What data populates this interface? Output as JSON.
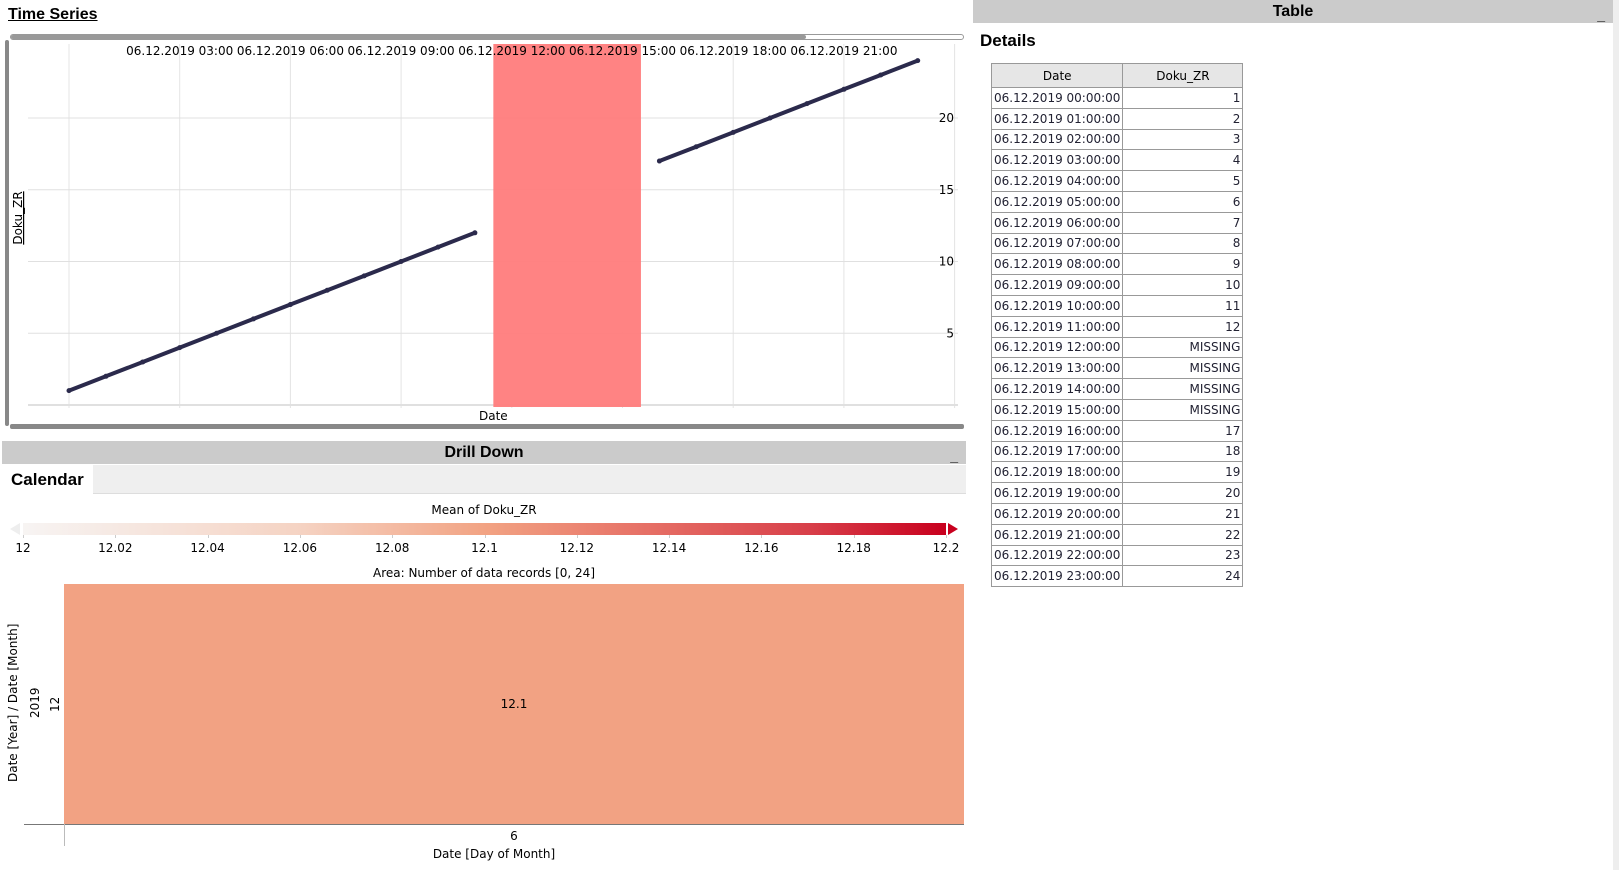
{
  "time_series": {
    "title": "Time Series",
    "chart_data": {
      "type": "line",
      "xlabel": "Date",
      "ylabel": "Doku_ZR",
      "x_tick_labels": [
        "06.12.2019 03:00",
        "06.12.2019 06:00",
        "06.12.2019 09:00",
        "06.12.2019 12:00",
        "06.12.2019 15:00",
        "06.12.2019 18:00",
        "06.12.2019 21:00"
      ],
      "y_ticks": [
        5,
        10,
        15,
        20
      ],
      "ylim": [
        0,
        24
      ],
      "grid": true,
      "series_color": "#2b2a4c",
      "highlight_color": "#ff7f7f",
      "highlight_range": [
        "06.12.2019 11:30",
        "06.12.2019 15:30"
      ],
      "x": [
        "00:00",
        "01:00",
        "02:00",
        "03:00",
        "04:00",
        "05:00",
        "06:00",
        "07:00",
        "08:00",
        "09:00",
        "10:00",
        "11:00",
        "12:00",
        "13:00",
        "14:00",
        "15:00",
        "16:00",
        "17:00",
        "18:00",
        "19:00",
        "20:00",
        "21:00",
        "22:00",
        "23:00"
      ],
      "values": [
        1,
        2,
        3,
        4,
        5,
        6,
        7,
        8,
        9,
        10,
        11,
        12,
        null,
        null,
        null,
        null,
        17,
        18,
        19,
        20,
        21,
        22,
        23,
        24
      ]
    }
  },
  "drill_down": {
    "title": "Drill Down",
    "minimize": "_",
    "tab": "Calendar",
    "chart_data": {
      "type": "heatmap",
      "legend_title": "Mean of Doku_ZR",
      "legend_ticks": [
        "12",
        "12.02",
        "12.04",
        "12.06",
        "12.08",
        "12.1",
        "12.12",
        "12.14",
        "12.16",
        "12.18",
        "12.2"
      ],
      "legend_colors": [
        "#f7f4f3",
        "#f2a383",
        "#c8001e"
      ],
      "area_label": "Area:  Number of data records  [0, 24]",
      "xlabel": "Date [Day of Month]",
      "ylabel": "Date [Year] / Date [Month]",
      "x_categories": [
        "6"
      ],
      "y_year": "2019",
      "y_month": "12",
      "cells": [
        {
          "day": "6",
          "year": "2019",
          "month": "12",
          "value": "12.1",
          "color": "#f2a283"
        }
      ]
    }
  },
  "table": {
    "title": "Table",
    "minimize": "_",
    "section": "Details",
    "columns": [
      "Date",
      "Doku_ZR"
    ],
    "rows": [
      [
        "06.12.2019 00:00:00",
        "1"
      ],
      [
        "06.12.2019 01:00:00",
        "2"
      ],
      [
        "06.12.2019 02:00:00",
        "3"
      ],
      [
        "06.12.2019 03:00:00",
        "4"
      ],
      [
        "06.12.2019 04:00:00",
        "5"
      ],
      [
        "06.12.2019 05:00:00",
        "6"
      ],
      [
        "06.12.2019 06:00:00",
        "7"
      ],
      [
        "06.12.2019 07:00:00",
        "8"
      ],
      [
        "06.12.2019 08:00:00",
        "9"
      ],
      [
        "06.12.2019 09:00:00",
        "10"
      ],
      [
        "06.12.2019 10:00:00",
        "11"
      ],
      [
        "06.12.2019 11:00:00",
        "12"
      ],
      [
        "06.12.2019 12:00:00",
        "MISSING"
      ],
      [
        "06.12.2019 13:00:00",
        "MISSING"
      ],
      [
        "06.12.2019 14:00:00",
        "MISSING"
      ],
      [
        "06.12.2019 15:00:00",
        "MISSING"
      ],
      [
        "06.12.2019 16:00:00",
        "17"
      ],
      [
        "06.12.2019 17:00:00",
        "18"
      ],
      [
        "06.12.2019 18:00:00",
        "19"
      ],
      [
        "06.12.2019 19:00:00",
        "20"
      ],
      [
        "06.12.2019 20:00:00",
        "21"
      ],
      [
        "06.12.2019 21:00:00",
        "22"
      ],
      [
        "06.12.2019 22:00:00",
        "23"
      ],
      [
        "06.12.2019 23:00:00",
        "24"
      ]
    ]
  }
}
